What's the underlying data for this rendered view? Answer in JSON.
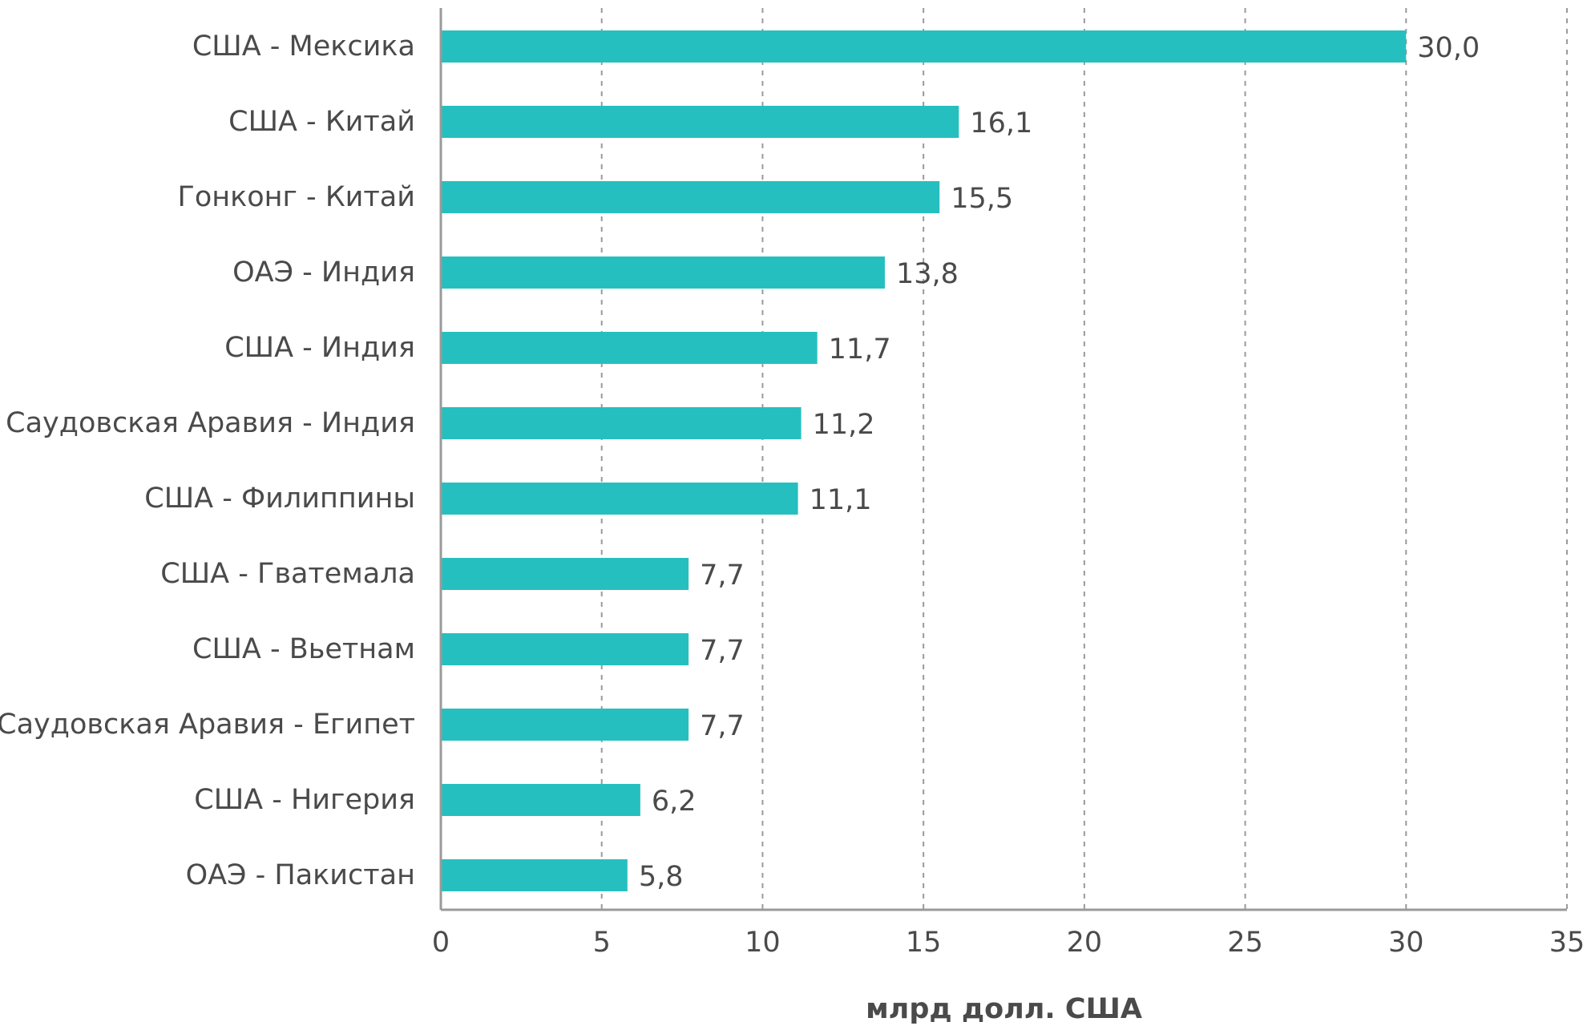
{
  "chart_data": {
    "type": "bar",
    "orientation": "horizontal",
    "categories": [
      "США - Мексика",
      "США - Китай",
      "Гонконг - Китай",
      "ОАЭ - Индия",
      "США - Индия",
      "Саудовская Аравия - Индия",
      "США - Филиппины",
      "США - Гватемала",
      "США - Вьетнам",
      "Саудовская Аравия - Египет",
      "США - Нигерия",
      "ОАЭ - Пакистан"
    ],
    "values": [
      30.0,
      16.1,
      15.5,
      13.8,
      11.7,
      11.2,
      11.1,
      7.7,
      7.7,
      7.7,
      6.2,
      5.8
    ],
    "value_labels": [
      "30,0",
      "16,1",
      "15,5",
      "13,8",
      "11,7",
      "11,2",
      "11,1",
      "7,7",
      "7,7",
      "7,7",
      "6,2",
      "5,8"
    ],
    "title": "",
    "xlabel": "млрд долл. США",
    "ylabel": "",
    "xlim": [
      0,
      35
    ],
    "xticks": [
      0,
      5,
      10,
      15,
      20,
      25,
      30,
      35
    ],
    "xtick_labels": [
      "0",
      "5",
      "10",
      "15",
      "20",
      "25",
      "30",
      "35"
    ],
    "grid": "vertical dashed",
    "legend": "none",
    "bar_color": "#26bfbf"
  }
}
